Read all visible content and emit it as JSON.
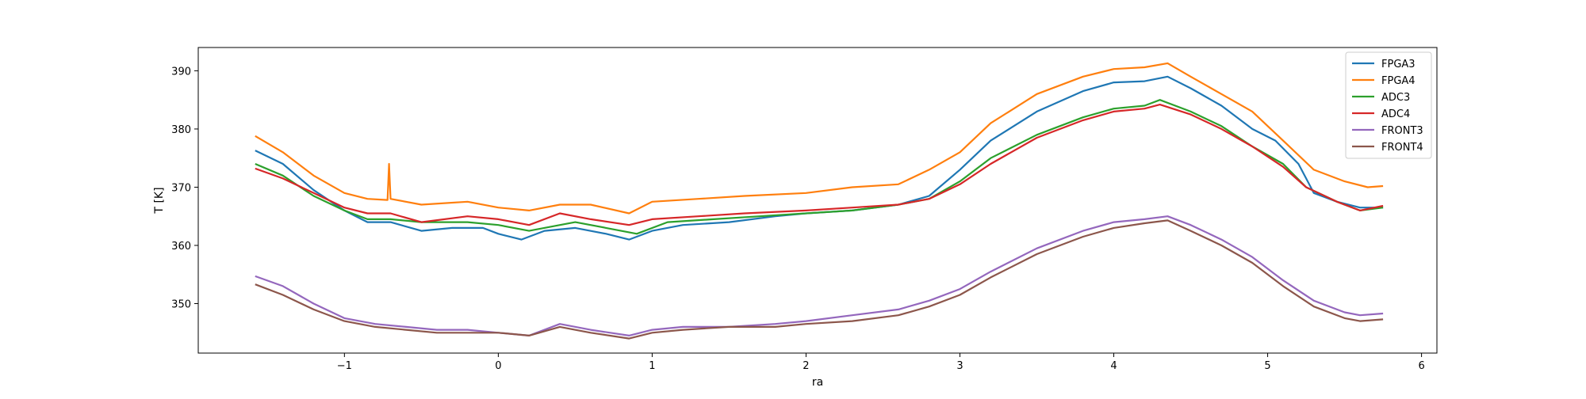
{
  "chart_data": {
    "type": "line",
    "title": "",
    "xlabel": "ra",
    "ylabel": "T [K]",
    "xlim": [
      -1.95,
      6.1
    ],
    "ylim": [
      341.5,
      394.0
    ],
    "xticks": [
      -1,
      0,
      1,
      2,
      3,
      4,
      5,
      6
    ],
    "xtick_labels": [
      "−1",
      "0",
      "1",
      "2",
      "3",
      "4",
      "5",
      "6"
    ],
    "yticks": [
      350,
      360,
      370,
      380,
      390
    ],
    "ytick_labels": [
      "350",
      "360",
      "370",
      "380",
      "390"
    ],
    "grid": false,
    "legend_position": "top-right",
    "series": [
      {
        "name": "FPGA3",
        "color": "#1f77b4",
        "x": [
          -1.58,
          -1.4,
          -1.2,
          -1.0,
          -0.85,
          -0.7,
          -0.5,
          -0.3,
          -0.1,
          0.0,
          0.15,
          0.3,
          0.5,
          0.7,
          0.85,
          1.0,
          1.2,
          1.5,
          1.8,
          2.0,
          2.3,
          2.6,
          2.8,
          3.0,
          3.2,
          3.5,
          3.8,
          4.0,
          4.2,
          4.35,
          4.5,
          4.7,
          4.9,
          5.05,
          5.2,
          5.3,
          5.45,
          5.6,
          5.75
        ],
        "y": [
          376.3,
          374.0,
          369.5,
          366.0,
          364.0,
          364.0,
          362.5,
          363.0,
          363.0,
          362.0,
          361.0,
          362.5,
          363.0,
          362.0,
          361.0,
          362.5,
          363.5,
          364.0,
          365.0,
          365.5,
          366.0,
          367.0,
          368.5,
          373.0,
          378.0,
          383.0,
          386.5,
          388.0,
          388.2,
          389.0,
          387.0,
          384.0,
          380.0,
          378.0,
          374.0,
          369.0,
          367.5,
          366.5,
          366.5
        ]
      },
      {
        "name": "FPGA4",
        "color": "#ff7f0e",
        "x": [
          -1.58,
          -1.4,
          -1.2,
          -1.0,
          -0.85,
          -0.72,
          -0.71,
          -0.7,
          -0.5,
          -0.2,
          0.0,
          0.2,
          0.4,
          0.6,
          0.85,
          1.0,
          1.3,
          1.6,
          2.0,
          2.3,
          2.6,
          2.8,
          3.0,
          3.2,
          3.5,
          3.8,
          4.0,
          4.2,
          4.35,
          4.5,
          4.7,
          4.9,
          5.1,
          5.3,
          5.5,
          5.65,
          5.75
        ],
        "y": [
          378.8,
          376.0,
          372.0,
          369.0,
          368.0,
          367.8,
          374.0,
          368.0,
          367.0,
          367.5,
          366.5,
          366.0,
          367.0,
          367.0,
          365.5,
          367.5,
          368.0,
          368.5,
          369.0,
          370.0,
          370.5,
          373.0,
          376.0,
          381.0,
          386.0,
          389.0,
          390.3,
          390.6,
          391.3,
          389.0,
          386.0,
          383.0,
          378.0,
          373.0,
          371.0,
          370.0,
          370.2
        ]
      },
      {
        "name": "ADC3",
        "color": "#2ca02c",
        "x": [
          -1.58,
          -1.4,
          -1.2,
          -1.0,
          -0.85,
          -0.7,
          -0.5,
          -0.2,
          0.0,
          0.2,
          0.5,
          0.7,
          0.9,
          1.1,
          1.4,
          1.7,
          2.0,
          2.3,
          2.6,
          2.8,
          3.0,
          3.2,
          3.5,
          3.8,
          4.0,
          4.2,
          4.3,
          4.5,
          4.7,
          4.9,
          5.1,
          5.25,
          5.45,
          5.6,
          5.75
        ],
        "y": [
          374.0,
          372.0,
          368.5,
          366.0,
          364.5,
          364.5,
          364.0,
          364.0,
          363.5,
          362.5,
          364.0,
          363.0,
          362.0,
          364.0,
          364.5,
          365.0,
          365.5,
          366.0,
          367.0,
          368.0,
          371.0,
          375.0,
          379.0,
          382.0,
          383.5,
          384.0,
          385.0,
          383.0,
          380.5,
          377.0,
          374.0,
          370.0,
          367.5,
          366.0,
          366.5
        ]
      },
      {
        "name": "ADC4",
        "color": "#d62728",
        "x": [
          -1.58,
          -1.4,
          -1.2,
          -1.0,
          -0.85,
          -0.7,
          -0.5,
          -0.2,
          0.0,
          0.2,
          0.4,
          0.6,
          0.85,
          1.0,
          1.3,
          1.6,
          2.0,
          2.3,
          2.6,
          2.8,
          3.0,
          3.2,
          3.5,
          3.8,
          4.0,
          4.2,
          4.3,
          4.5,
          4.7,
          4.9,
          5.1,
          5.25,
          5.45,
          5.6,
          5.75
        ],
        "y": [
          373.2,
          371.5,
          369.0,
          366.5,
          365.5,
          365.5,
          364.0,
          365.0,
          364.5,
          363.5,
          365.5,
          364.5,
          363.5,
          364.5,
          365.0,
          365.5,
          366.0,
          366.5,
          367.0,
          368.0,
          370.5,
          374.0,
          378.5,
          381.5,
          383.0,
          383.5,
          384.2,
          382.5,
          380.0,
          377.0,
          373.5,
          370.0,
          367.5,
          366.0,
          366.8
        ]
      },
      {
        "name": "FRONT3",
        "color": "#9467bd",
        "x": [
          -1.58,
          -1.4,
          -1.2,
          -1.0,
          -0.8,
          -0.6,
          -0.4,
          -0.2,
          0.0,
          0.2,
          0.4,
          0.6,
          0.85,
          1.0,
          1.2,
          1.5,
          1.8,
          2.0,
          2.3,
          2.6,
          2.8,
          3.0,
          3.2,
          3.5,
          3.8,
          4.0,
          4.2,
          4.35,
          4.5,
          4.7,
          4.9,
          5.1,
          5.3,
          5.5,
          5.6,
          5.75
        ],
        "y": [
          354.7,
          353.0,
          350.0,
          347.5,
          346.5,
          346.0,
          345.5,
          345.5,
          345.0,
          344.5,
          346.5,
          345.5,
          344.5,
          345.5,
          346.0,
          346.0,
          346.5,
          347.0,
          348.0,
          349.0,
          350.5,
          352.5,
          355.5,
          359.5,
          362.5,
          364.0,
          364.5,
          365.0,
          363.5,
          361.0,
          358.0,
          354.0,
          350.5,
          348.5,
          348.0,
          348.3
        ]
      },
      {
        "name": "FRONT4",
        "color": "#8c564b",
        "x": [
          -1.58,
          -1.4,
          -1.2,
          -1.0,
          -0.8,
          -0.6,
          -0.4,
          -0.2,
          0.0,
          0.2,
          0.4,
          0.6,
          0.85,
          1.0,
          1.2,
          1.5,
          1.8,
          2.0,
          2.3,
          2.6,
          2.8,
          3.0,
          3.2,
          3.5,
          3.8,
          4.0,
          4.2,
          4.35,
          4.5,
          4.7,
          4.9,
          5.1,
          5.3,
          5.5,
          5.6,
          5.75
        ],
        "y": [
          353.3,
          351.5,
          349.0,
          347.0,
          346.0,
          345.5,
          345.0,
          345.0,
          345.0,
          344.5,
          346.0,
          345.0,
          344.0,
          345.0,
          345.5,
          346.0,
          346.0,
          346.5,
          347.0,
          348.0,
          349.5,
          351.5,
          354.5,
          358.5,
          361.5,
          363.0,
          363.8,
          364.3,
          362.5,
          360.0,
          357.0,
          353.0,
          349.5,
          347.5,
          347.0,
          347.3
        ]
      }
    ]
  }
}
